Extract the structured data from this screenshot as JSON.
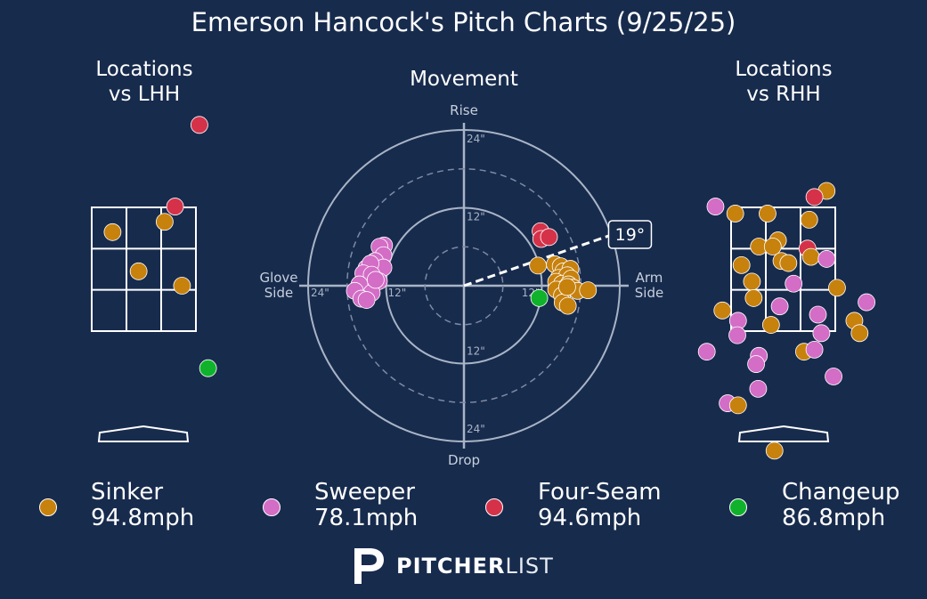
{
  "title": "Emerson Hancock's Pitch Charts (9/25/25)",
  "panels": {
    "lhh_title": [
      "Locations",
      "vs LHH"
    ],
    "movement_title": "Movement",
    "rhh_title": [
      "Locations",
      "vs RHH"
    ]
  },
  "colors": {
    "background": "#172b4d",
    "Sinker": "#c7810d",
    "Sweeper": "#d36dc6",
    "Four-Seam": "#d5324a",
    "Changeup": "#10b22c"
  },
  "chart_data": [
    {
      "type": "scatter",
      "title": "Locations vs LHH",
      "units": "strike-zone cells (0-3 horizontal, 0-3 vertical)",
      "points": [
        {
          "pitch": "Four-Seam",
          "x": 3.1,
          "y": -2.0
        },
        {
          "pitch": "Four-Seam",
          "x": 2.4,
          "y": -0.02
        },
        {
          "pitch": "Sinker",
          "x": 0.6,
          "y": 0.6
        },
        {
          "pitch": "Sinker",
          "x": 2.1,
          "y": 0.35
        },
        {
          "pitch": "Sinker",
          "x": 1.35,
          "y": 1.55
        },
        {
          "pitch": "Sinker",
          "x": 2.6,
          "y": 1.9
        },
        {
          "pitch": "Changeup",
          "x": 3.35,
          "y": 3.9
        }
      ]
    },
    {
      "type": "scatter",
      "title": "Movement",
      "axis_labels": {
        "top": "Rise",
        "bottom": "Drop",
        "left": [
          "Glove",
          "Side"
        ],
        "right": [
          "Arm",
          "Side"
        ]
      },
      "ring_labels": {
        "outer": "24\"",
        "inner": "12\""
      },
      "range_inches": [
        -24,
        24
      ],
      "arm_angle_deg": 19,
      "arm_angle_label": "19°",
      "points": [
        {
          "pitch": "Four-Seam",
          "x": 11.8,
          "y": 8.4
        },
        {
          "pitch": "Four-Seam",
          "x": 11.9,
          "y": 7.2
        },
        {
          "pitch": "Four-Seam",
          "x": 13.1,
          "y": 7.5
        },
        {
          "pitch": "Sinker",
          "x": 14.0,
          "y": 3.3
        },
        {
          "pitch": "Sinker",
          "x": 14.9,
          "y": 3.0
        },
        {
          "pitch": "Sinker",
          "x": 15.3,
          "y": 2.2
        },
        {
          "pitch": "Sinker",
          "x": 16.4,
          "y": 2.6
        },
        {
          "pitch": "Sinker",
          "x": 14.6,
          "y": 1.2
        },
        {
          "pitch": "Sinker",
          "x": 15.9,
          "y": 1.6
        },
        {
          "pitch": "Sinker",
          "x": 14.2,
          "y": 0.6
        },
        {
          "pitch": "Sinker",
          "x": 15.1,
          "y": 0.3
        },
        {
          "pitch": "Sinker",
          "x": 16.5,
          "y": 1.1
        },
        {
          "pitch": "Sinker",
          "x": 16.1,
          "y": 0.2
        },
        {
          "pitch": "Sinker",
          "x": 15.0,
          "y": -0.6
        },
        {
          "pitch": "Sinker",
          "x": 16.8,
          "y": -0.3
        },
        {
          "pitch": "Sinker",
          "x": 14.2,
          "y": -0.6
        },
        {
          "pitch": "Sinker",
          "x": 15.1,
          "y": -1.5
        },
        {
          "pitch": "Sinker",
          "x": 15.2,
          "y": -2.6
        },
        {
          "pitch": "Sinker",
          "x": 16.0,
          "y": -3.1
        },
        {
          "pitch": "Sinker",
          "x": 17.5,
          "y": -0.8
        },
        {
          "pitch": "Sinker",
          "x": 15.9,
          "y": -0.2
        },
        {
          "pitch": "Sinker",
          "x": 11.4,
          "y": 3.1
        },
        {
          "pitch": "Sinker",
          "x": 19.1,
          "y": -0.7
        },
        {
          "pitch": "Changeup",
          "x": 11.6,
          "y": -1.9
        },
        {
          "pitch": "Sweeper",
          "x": -12.3,
          "y": 6.2
        },
        {
          "pitch": "Sweeper",
          "x": -13.0,
          "y": 6.0
        },
        {
          "pitch": "Sweeper",
          "x": -12.4,
          "y": 4.7
        },
        {
          "pitch": "Sweeper",
          "x": -13.7,
          "y": 3.8
        },
        {
          "pitch": "Sweeper",
          "x": -12.4,
          "y": 2.8
        },
        {
          "pitch": "Sweeper",
          "x": -15.0,
          "y": 2.7
        },
        {
          "pitch": "Sweeper",
          "x": -14.4,
          "y": 3.4
        },
        {
          "pitch": "Sweeper",
          "x": -15.5,
          "y": 1.9
        },
        {
          "pitch": "Sweeper",
          "x": -14.2,
          "y": 1.7
        },
        {
          "pitch": "Sweeper",
          "x": -13.1,
          "y": 0.7
        },
        {
          "pitch": "Sweeper",
          "x": -16.1,
          "y": 0.2
        },
        {
          "pitch": "Sweeper",
          "x": -16.8,
          "y": -0.8
        },
        {
          "pitch": "Sweeper",
          "x": -14.2,
          "y": -1.1
        },
        {
          "pitch": "Sweeper",
          "x": -15.8,
          "y": -2.0
        },
        {
          "pitch": "Sweeper",
          "x": -15.0,
          "y": -2.2
        },
        {
          "pitch": "Sweeper",
          "x": -13.6,
          "y": 0.9
        }
      ]
    },
    {
      "type": "scatter",
      "title": "Locations vs RHH",
      "units": "strike-zone cells (0-3 horizontal, 0-3 vertical)",
      "points": [
        {
          "pitch": "Sinker",
          "x": 2.75,
          "y": -0.4
        },
        {
          "pitch": "Four-Seam",
          "x": 2.4,
          "y": -0.25
        },
        {
          "pitch": "Sweeper",
          "x": -0.45,
          "y": -0.02
        },
        {
          "pitch": "Sinker",
          "x": 0.12,
          "y": 0.15
        },
        {
          "pitch": "Sinker",
          "x": 1.05,
          "y": 0.15
        },
        {
          "pitch": "Sinker",
          "x": 2.25,
          "y": 0.3
        },
        {
          "pitch": "Sinker",
          "x": 1.35,
          "y": 0.8
        },
        {
          "pitch": "Sinker",
          "x": 0.8,
          "y": 0.95
        },
        {
          "pitch": "Sinker",
          "x": 1.2,
          "y": 0.95
        },
        {
          "pitch": "Four-Seam",
          "x": 2.2,
          "y": 1.0
        },
        {
          "pitch": "Sinker",
          "x": 2.3,
          "y": 1.2
        },
        {
          "pitch": "Sweeper",
          "x": 2.75,
          "y": 1.25
        },
        {
          "pitch": "Sinker",
          "x": 0.3,
          "y": 1.4
        },
        {
          "pitch": "Sinker",
          "x": 1.45,
          "y": 1.3
        },
        {
          "pitch": "Sinker",
          "x": 1.65,
          "y": 1.35
        },
        {
          "pitch": "Sinker",
          "x": 0.6,
          "y": 1.8
        },
        {
          "pitch": "Sweeper",
          "x": 1.8,
          "y": 1.85
        },
        {
          "pitch": "Sinker",
          "x": 3.05,
          "y": 1.95
        },
        {
          "pitch": "Sinker",
          "x": 0.65,
          "y": 2.2
        },
        {
          "pitch": "Sweeper",
          "x": 1.4,
          "y": 2.4
        },
        {
          "pitch": "Sweeper",
          "x": 3.9,
          "y": 2.3
        },
        {
          "pitch": "Sinker",
          "x": -0.25,
          "y": 2.5
        },
        {
          "pitch": "Sweeper",
          "x": 0.2,
          "y": 2.75
        },
        {
          "pitch": "Sinker",
          "x": 1.15,
          "y": 2.85
        },
        {
          "pitch": "Sweeper",
          "x": 2.5,
          "y": 2.6
        },
        {
          "pitch": "Sinker",
          "x": 3.55,
          "y": 2.75
        },
        {
          "pitch": "Sweeper",
          "x": 0.18,
          "y": 3.1
        },
        {
          "pitch": "Sweeper",
          "x": 2.6,
          "y": 3.05
        },
        {
          "pitch": "Sinker",
          "x": 3.7,
          "y": 3.05
        },
        {
          "pitch": "Sweeper",
          "x": 0.8,
          "y": 3.6
        },
        {
          "pitch": "Sweeper",
          "x": -0.7,
          "y": 3.5
        },
        {
          "pitch": "Sinker",
          "x": 2.1,
          "y": 3.5
        },
        {
          "pitch": "Sweeper",
          "x": 2.4,
          "y": 3.45
        },
        {
          "pitch": "Sweeper",
          "x": 0.72,
          "y": 3.8
        },
        {
          "pitch": "Sweeper",
          "x": 0.78,
          "y": 4.4
        },
        {
          "pitch": "Sweeper",
          "x": 2.95,
          "y": 4.1
        },
        {
          "pitch": "Sweeper",
          "x": -0.1,
          "y": 4.75
        },
        {
          "pitch": "Sinker",
          "x": 0.2,
          "y": 4.8
        },
        {
          "pitch": "Sinker",
          "x": 1.25,
          "y": 5.9
        }
      ]
    }
  ],
  "legend": [
    {
      "pitch": "Sinker",
      "name": "Sinker",
      "speed": "94.8mph"
    },
    {
      "pitch": "Sweeper",
      "name": "Sweeper",
      "speed": "78.1mph"
    },
    {
      "pitch": "Four-Seam",
      "name": "Four-Seam",
      "speed": "94.6mph"
    },
    {
      "pitch": "Changeup",
      "name": "Changeup",
      "speed": "86.8mph"
    }
  ],
  "brand": {
    "bold": "PITCHER",
    "light": "LIST"
  }
}
